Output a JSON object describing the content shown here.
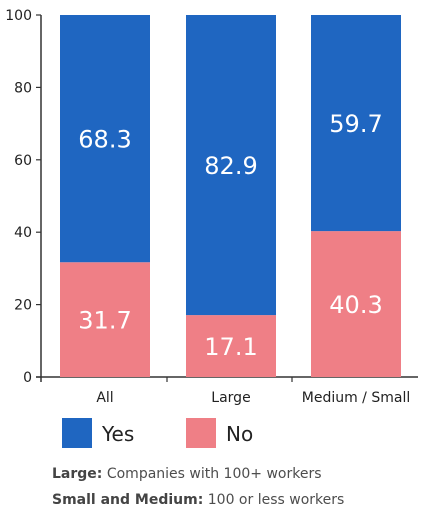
{
  "chart_data": {
    "type": "bar",
    "stacked": true,
    "percent": true,
    "categories": [
      "All",
      "Large",
      "Medium / Small"
    ],
    "series": [
      {
        "name": "Yes",
        "values": [
          68.3,
          82.9,
          59.7
        ],
        "color": "#1f66c1"
      },
      {
        "name": "No",
        "values": [
          31.7,
          17.1,
          40.3
        ],
        "color": "#ef7f86"
      }
    ],
    "yticks": [
      0,
      20,
      40,
      60,
      80,
      100
    ],
    "ylim": [
      0,
      100
    ],
    "legend": "bottom"
  },
  "notes": [
    {
      "term": "Large:",
      "text": " Companies with 100+ workers"
    },
    {
      "term": "Small and Medium:",
      "text": " 100 or less workers"
    }
  ]
}
